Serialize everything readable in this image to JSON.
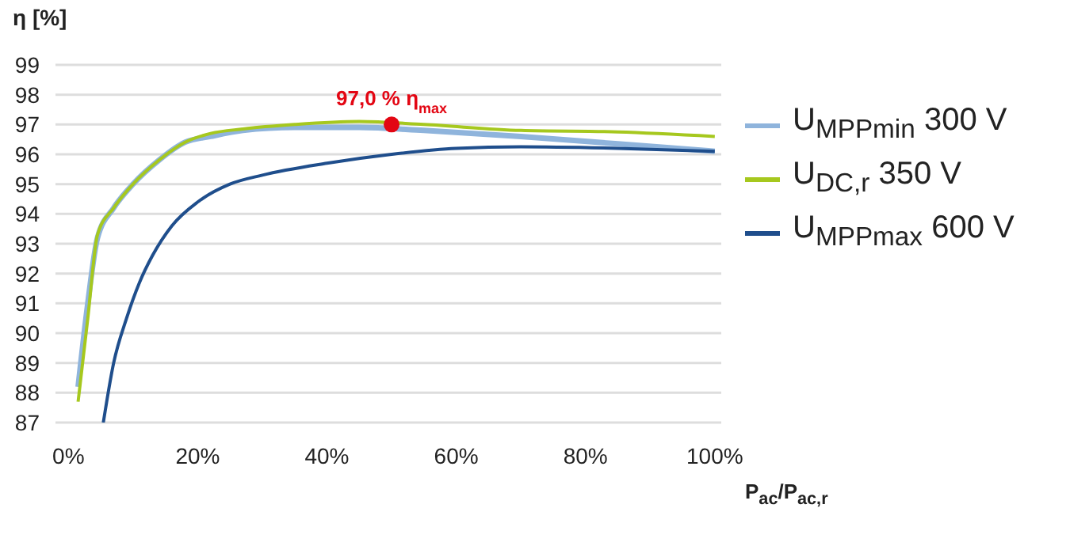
{
  "chart_data": {
    "type": "line",
    "ylabel": "η [%]",
    "xlabel": "P$_{ac}$/P$_{ac,r}$",
    "xlim": [
      -2,
      101
    ],
    "xticks": [
      {
        "value": 0,
        "label": "0%"
      },
      {
        "value": 20,
        "label": "20%"
      },
      {
        "value": 40,
        "label": "40%"
      },
      {
        "value": 60,
        "label": "60%"
      },
      {
        "value": 80,
        "label": "80%"
      },
      {
        "value": 100,
        "label": "100%"
      }
    ],
    "ylim": [
      87,
      99
    ],
    "yticks": [
      87,
      88,
      89,
      90,
      91,
      92,
      93,
      94,
      95,
      96,
      97,
      98,
      99
    ],
    "grid": "y",
    "legend": "right",
    "series": [
      {
        "name": "U$_{MPPmin}$ 300 V",
        "color": "#8fb4dc",
        "x": [
          1.5,
          3,
          4.5,
          7,
          10,
          14,
          18,
          22,
          27,
          35,
          45,
          55,
          70,
          85,
          100
        ],
        "values": [
          88.2,
          91,
          93.2,
          94.2,
          95,
          95.8,
          96.4,
          96.6,
          96.8,
          96.9,
          96.9,
          96.8,
          96.6,
          96.35,
          96.1
        ]
      },
      {
        "name": "U$_{DC,r}$ 350 V",
        "color": "#a6c81e",
        "x": [
          1.5,
          3,
          4.5,
          7,
          10,
          14,
          18,
          22,
          27,
          35,
          45,
          55,
          70,
          85,
          100
        ],
        "values": [
          87.7,
          90.5,
          93.3,
          94.2,
          95,
          95.8,
          96.4,
          96.7,
          96.85,
          97,
          97.1,
          97,
          96.8,
          96.75,
          96.6
        ]
      },
      {
        "name": "U$_{MPPmax}$ 600 V",
        "color": "#1f4e8c",
        "x": [
          5.4,
          7,
          9,
          11,
          13,
          16,
          20,
          25,
          30,
          40,
          50,
          60,
          70,
          85,
          100
        ],
        "values": [
          87,
          89,
          90.5,
          91.7,
          92.6,
          93.6,
          94.4,
          95,
          95.3,
          95.7,
          96,
          96.2,
          96.25,
          96.2,
          96.1
        ]
      },
      {
        "type": "scatter",
        "color": "#e30613",
        "x": [
          50
        ],
        "values": [
          97
        ]
      }
    ],
    "annotations": [
      {
        "text": "97,0 % η$_{max}$",
        "x": 50,
        "y": 97
      }
    ]
  }
}
